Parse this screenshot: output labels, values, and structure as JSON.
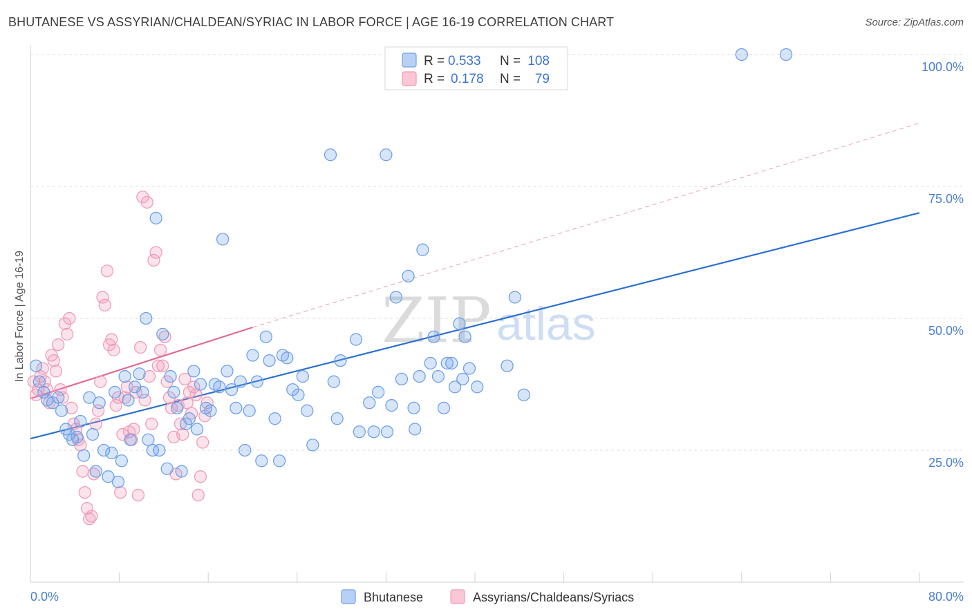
{
  "title": "BHUTANESE VS ASSYRIAN/CHALDEAN/SYRIAC IN LABOR FORCE | AGE 16-19 CORRELATION CHART",
  "source": "Source: ZipAtlas.com",
  "colors": {
    "blue": "#6fa0e8",
    "blue_line": "#2a6fd1",
    "pink": "#f19bb6",
    "pink_line": "#e06a93",
    "tick": "#4a7fd4"
  },
  "legend": {
    "rows": [
      {
        "r_label": "R =",
        "r_value": "0.533",
        "n_label": "N =",
        "n_value": "108"
      },
      {
        "r_label": "R =",
        "r_value": "0.178",
        "n_label": "N =",
        "n_value": "79"
      }
    ]
  },
  "watermark": {
    "zip": "ZIP",
    "atlas": "atlas"
  },
  "chart_data": {
    "type": "scatter",
    "title": "BHUTANESE VS ASSYRIAN/CHALDEAN/SYRIAC IN LABOR FORCE | AGE 16-19 CORRELATION CHART",
    "xlabel": "",
    "ylabel": "In Labor Force | Age 16-19",
    "xlim": [
      0,
      80
    ],
    "ylim": [
      0,
      105
    ],
    "x_tick_labels": [
      "0.0%",
      "80.0%"
    ],
    "y_ticks": [
      25,
      50,
      75,
      100
    ],
    "y_tick_labels": [
      "25.0%",
      "50.0%",
      "75.0%",
      "100.0%"
    ],
    "series": [
      {
        "name": "Bhutanese",
        "color": "#6fa0e8",
        "trend": {
          "x": [
            0,
            80
          ],
          "y": [
            27.2,
            70.0
          ],
          "dashed": false
        },
        "points": [
          [
            0.5,
            41.0
          ],
          [
            0.8,
            38.0
          ],
          [
            1.2,
            36.0
          ],
          [
            1.5,
            34.5
          ],
          [
            2.0,
            34.0
          ],
          [
            2.5,
            35.0
          ],
          [
            2.8,
            32.5
          ],
          [
            3.2,
            29.0
          ],
          [
            3.5,
            28.0
          ],
          [
            3.8,
            27.0
          ],
          [
            4.2,
            27.5
          ],
          [
            4.5,
            30.5
          ],
          [
            4.8,
            24.0
          ],
          [
            5.3,
            35.0
          ],
          [
            5.6,
            28.0
          ],
          [
            5.9,
            21.0
          ],
          [
            6.2,
            34.0
          ],
          [
            6.6,
            25.0
          ],
          [
            7.0,
            20.0
          ],
          [
            7.3,
            24.5
          ],
          [
            7.6,
            36.0
          ],
          [
            7.9,
            19.0
          ],
          [
            8.2,
            23.0
          ],
          [
            8.5,
            39.0
          ],
          [
            8.8,
            34.5
          ],
          [
            9.0,
            27.0
          ],
          [
            9.4,
            37.0
          ],
          [
            9.8,
            39.5
          ],
          [
            10.1,
            36.0
          ],
          [
            10.4,
            50.0
          ],
          [
            10.6,
            27.0
          ],
          [
            11.0,
            25.0
          ],
          [
            11.3,
            69.0
          ],
          [
            11.6,
            25.0
          ],
          [
            11.9,
            47.0
          ],
          [
            12.3,
            21.5
          ],
          [
            12.6,
            39.0
          ],
          [
            12.9,
            36.0
          ],
          [
            13.2,
            33.0
          ],
          [
            13.6,
            21.0
          ],
          [
            14.0,
            30.0
          ],
          [
            14.3,
            31.0
          ],
          [
            14.7,
            40.0
          ],
          [
            15.0,
            29.0
          ],
          [
            15.3,
            37.5
          ],
          [
            15.8,
            33.0
          ],
          [
            16.2,
            32.5
          ],
          [
            16.6,
            37.5
          ],
          [
            17.0,
            37.0
          ],
          [
            17.3,
            65.0
          ],
          [
            17.7,
            40.0
          ],
          [
            18.1,
            36.5
          ],
          [
            18.5,
            33.0
          ],
          [
            18.9,
            38.0
          ],
          [
            19.3,
            25.0
          ],
          [
            19.7,
            32.5
          ],
          [
            20.0,
            43.0
          ],
          [
            20.4,
            38.0
          ],
          [
            20.8,
            23.0
          ],
          [
            21.2,
            46.5
          ],
          [
            21.5,
            42.0
          ],
          [
            22.0,
            31.0
          ],
          [
            22.4,
            23.0
          ],
          [
            22.7,
            43.0
          ],
          [
            23.1,
            42.5
          ],
          [
            23.6,
            36.5
          ],
          [
            24.1,
            35.5
          ],
          [
            24.5,
            39.0
          ],
          [
            24.9,
            32.5
          ],
          [
            25.4,
            26.0
          ],
          [
            27.0,
            81.0
          ],
          [
            27.3,
            38.0
          ],
          [
            27.6,
            31.0
          ],
          [
            27.9,
            42.0
          ],
          [
            29.3,
            46.0
          ],
          [
            29.6,
            28.5
          ],
          [
            30.5,
            34.0
          ],
          [
            30.9,
            28.5
          ],
          [
            31.3,
            36.0
          ],
          [
            32.0,
            81.0
          ],
          [
            32.1,
            28.5
          ],
          [
            32.5,
            33.5
          ],
          [
            32.9,
            54.0
          ],
          [
            33.4,
            38.5
          ],
          [
            34.0,
            58.0
          ],
          [
            34.5,
            33.0
          ],
          [
            34.6,
            29.0
          ],
          [
            35.0,
            39.0
          ],
          [
            35.3,
            63.0
          ],
          [
            36.0,
            41.5
          ],
          [
            36.3,
            46.5
          ],
          [
            36.7,
            39.0
          ],
          [
            37.2,
            33.0
          ],
          [
            37.5,
            41.5
          ],
          [
            37.9,
            41.5
          ],
          [
            38.2,
            37.0
          ],
          [
            38.6,
            49.0
          ],
          [
            38.9,
            38.5
          ],
          [
            39.1,
            46.5
          ],
          [
            39.5,
            40.5
          ],
          [
            40.2,
            37.0
          ],
          [
            42.9,
            41.0
          ],
          [
            43.6,
            54.0
          ],
          [
            44.4,
            35.5
          ],
          [
            64.0,
            100.0
          ],
          [
            68.0,
            100.0
          ]
        ]
      },
      {
        "name": "Assyrians/Chaldeans/Syriacs",
        "color": "#f19bb6",
        "trend": {
          "x": [
            0,
            20
          ],
          "y": [
            34.8,
            48.3
          ],
          "dashed": false,
          "extended": {
            "x": [
              20,
              80
            ],
            "y": [
              48.3,
              87.0
            ],
            "dashed": true
          }
        },
        "points": [
          [
            0.3,
            38.0
          ],
          [
            0.5,
            35.5
          ],
          [
            0.7,
            36.5
          ],
          [
            0.9,
            39.0
          ],
          [
            1.1,
            40.5
          ],
          [
            1.3,
            38.0
          ],
          [
            1.5,
            36.5
          ],
          [
            1.7,
            34.0
          ],
          [
            1.9,
            43.0
          ],
          [
            2.1,
            42.0
          ],
          [
            2.3,
            40.0
          ],
          [
            2.5,
            45.0
          ],
          [
            2.7,
            36.5
          ],
          [
            2.9,
            35.0
          ],
          [
            3.1,
            49.0
          ],
          [
            3.3,
            47.0
          ],
          [
            3.5,
            50.0
          ],
          [
            3.7,
            33.0
          ],
          [
            3.9,
            30.0
          ],
          [
            4.1,
            29.0
          ],
          [
            4.3,
            27.0
          ],
          [
            4.5,
            26.0
          ],
          [
            4.7,
            21.0
          ],
          [
            4.9,
            17.0
          ],
          [
            5.1,
            14.0
          ],
          [
            5.3,
            12.0
          ],
          [
            5.5,
            12.5
          ],
          [
            5.7,
            20.5
          ],
          [
            5.9,
            30.0
          ],
          [
            6.1,
            32.5
          ],
          [
            6.3,
            38.0
          ],
          [
            6.5,
            54.0
          ],
          [
            6.7,
            52.5
          ],
          [
            6.9,
            59.0
          ],
          [
            7.1,
            45.0
          ],
          [
            7.3,
            46.0
          ],
          [
            7.5,
            44.0
          ],
          [
            7.7,
            33.5
          ],
          [
            7.9,
            35.0
          ],
          [
            8.1,
            17.0
          ],
          [
            8.3,
            28.0
          ],
          [
            8.5,
            35.0
          ],
          [
            8.7,
            37.0
          ],
          [
            8.9,
            28.5
          ],
          [
            9.1,
            27.0
          ],
          [
            9.3,
            29.0
          ],
          [
            9.5,
            36.0
          ],
          [
            9.7,
            16.5
          ],
          [
            9.9,
            44.5
          ],
          [
            10.1,
            73.0
          ],
          [
            10.3,
            34.5
          ],
          [
            10.5,
            72.0
          ],
          [
            10.7,
            39.0
          ],
          [
            10.9,
            30.0
          ],
          [
            11.1,
            61.0
          ],
          [
            11.3,
            62.5
          ],
          [
            11.5,
            41.0
          ],
          [
            11.7,
            44.0
          ],
          [
            11.9,
            41.0
          ],
          [
            12.1,
            46.5
          ],
          [
            12.3,
            38.0
          ],
          [
            12.5,
            35.0
          ],
          [
            12.7,
            33.0
          ],
          [
            12.9,
            27.5
          ],
          [
            13.1,
            20.5
          ],
          [
            13.3,
            33.5
          ],
          [
            13.5,
            30.0
          ],
          [
            13.7,
            28.0
          ],
          [
            13.9,
            38.5
          ],
          [
            14.1,
            34.0
          ],
          [
            14.3,
            36.0
          ],
          [
            14.5,
            32.0
          ],
          [
            14.7,
            37.0
          ],
          [
            14.9,
            35.5
          ],
          [
            15.1,
            16.5
          ],
          [
            15.3,
            20.0
          ],
          [
            15.5,
            26.5
          ],
          [
            15.7,
            31.5
          ],
          [
            15.9,
            34.0
          ]
        ]
      }
    ]
  },
  "bottom_legend": {
    "items": [
      {
        "label": "Bhutanese"
      },
      {
        "label": "Assyrians/Chaldeans/Syriacs"
      }
    ]
  }
}
